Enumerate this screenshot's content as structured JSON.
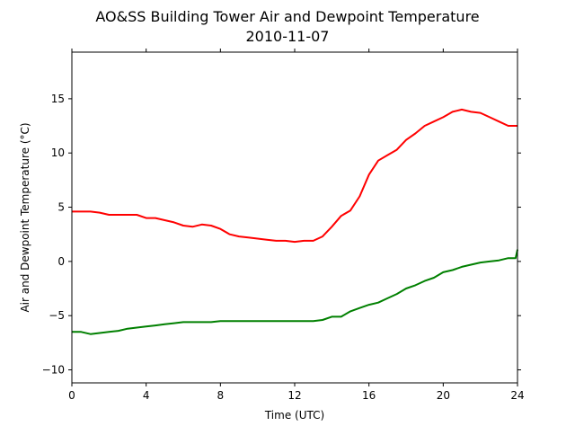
{
  "chart_data": {
    "type": "line",
    "title": "AO&SS Building Tower Air and Dewpoint Temperature",
    "subtitle": "2010-11-07",
    "xlabel": "Time (UTC)",
    "ylabel": "Air and Dewpoint Temperature (°C)",
    "xlim": [
      0,
      24
    ],
    "ylim": [
      -11.2,
      19.3
    ],
    "xticks": [
      0,
      4,
      8,
      12,
      16,
      20,
      24
    ],
    "yticks": [
      -10,
      -5,
      0,
      5,
      10,
      15
    ],
    "ytick_labels": [
      "−10",
      "−5",
      "0",
      "5",
      "10",
      "15"
    ],
    "grid": false,
    "legend": "none",
    "series": [
      {
        "color": "#ff0000",
        "x": [
          0,
          0.5,
          1,
          1.5,
          2,
          2.5,
          3,
          3.5,
          4,
          4.5,
          5,
          5.5,
          6,
          6.5,
          7,
          7.5,
          8,
          8.5,
          9,
          9.5,
          10,
          10.5,
          11,
          11.5,
          12,
          12.5,
          13,
          13.5,
          14,
          14.5,
          15,
          15.5,
          16,
          16.5,
          17,
          17.5,
          18,
          18.5,
          19,
          19.5,
          20,
          20.5,
          21,
          21.5,
          22,
          22.5,
          23,
          23.5,
          24
        ],
        "y": [
          4.6,
          4.6,
          4.6,
          4.5,
          4.3,
          4.3,
          4.3,
          4.3,
          4.0,
          4.0,
          3.8,
          3.6,
          3.3,
          3.2,
          3.4,
          3.3,
          3.0,
          2.5,
          2.3,
          2.2,
          2.1,
          2.0,
          1.9,
          1.9,
          1.8,
          1.9,
          1.9,
          2.3,
          3.2,
          4.2,
          4.7,
          6.0,
          8.0,
          9.3,
          9.8,
          10.3,
          11.2,
          11.8,
          12.5,
          12.9,
          13.3,
          13.8,
          14.0,
          13.8,
          13.7,
          13.3,
          12.9,
          12.5,
          12.5
        ]
      },
      {
        "color": "#008000",
        "x": [
          0,
          0.5,
          1,
          1.5,
          2,
          2.5,
          3,
          3.5,
          4,
          4.5,
          5,
          5.5,
          6,
          6.5,
          7,
          7.5,
          8,
          8.5,
          9,
          9.5,
          10,
          10.5,
          11,
          11.5,
          12,
          12.5,
          13,
          13.5,
          14,
          14.5,
          15,
          15.5,
          16,
          16.5,
          17,
          17.5,
          18,
          18.5,
          19,
          19.5,
          20,
          20.5,
          21,
          21.5,
          22,
          22.5,
          23,
          23.5,
          23.9,
          24
        ],
        "y": [
          -6.5,
          -6.5,
          -6.7,
          -6.6,
          -6.5,
          -6.4,
          -6.2,
          -6.1,
          -6.0,
          -5.9,
          -5.8,
          -5.7,
          -5.6,
          -5.6,
          -5.6,
          -5.6,
          -5.5,
          -5.5,
          -5.5,
          -5.5,
          -5.5,
          -5.5,
          -5.5,
          -5.5,
          -5.5,
          -5.5,
          -5.5,
          -5.4,
          -5.1,
          -5.1,
          -4.6,
          -4.3,
          -4.0,
          -3.8,
          -3.4,
          -3.0,
          -2.5,
          -2.2,
          -1.8,
          -1.5,
          -1.0,
          -0.8,
          -0.5,
          -0.3,
          -0.1,
          0.0,
          0.1,
          0.3,
          0.3,
          1.1
        ]
      }
    ]
  }
}
